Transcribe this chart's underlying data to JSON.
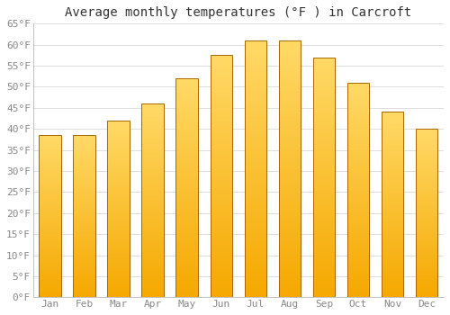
{
  "title": "Average monthly temperatures (°F ) in Carcroft",
  "months": [
    "Jan",
    "Feb",
    "Mar",
    "Apr",
    "May",
    "Jun",
    "Jul",
    "Aug",
    "Sep",
    "Oct",
    "Nov",
    "Dec"
  ],
  "values": [
    38.5,
    38.5,
    42.0,
    46.0,
    52.0,
    57.5,
    61.0,
    61.0,
    57.0,
    51.0,
    44.0,
    40.0
  ],
  "bar_color_bottom": "#F5A800",
  "bar_color_top": "#FFD966",
  "bar_edge_color": "#AA6600",
  "ylim": [
    0,
    65
  ],
  "yticks": [
    0,
    5,
    10,
    15,
    20,
    25,
    30,
    35,
    40,
    45,
    50,
    55,
    60,
    65
  ],
  "ytick_labels": [
    "0°F",
    "5°F",
    "10°F",
    "15°F",
    "20°F",
    "25°F",
    "30°F",
    "35°F",
    "40°F",
    "45°F",
    "50°F",
    "55°F",
    "60°F",
    "65°F"
  ],
  "background_color": "#FFFFFF",
  "grid_color": "#DDDDDD",
  "title_fontsize": 10,
  "tick_fontsize": 8,
  "font_family": "monospace"
}
